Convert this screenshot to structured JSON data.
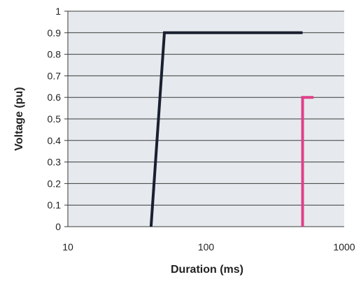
{
  "chart_data": {
    "type": "line",
    "title": "",
    "xlabel": "Duration (ms)",
    "ylabel": "Voltage (pu)",
    "x_scale": "log",
    "xlim": [
      10,
      1000
    ],
    "ylim": [
      0,
      1
    ],
    "x_ticks": [
      {
        "value": 10,
        "label": "10"
      },
      {
        "value": 100,
        "label": "100"
      },
      {
        "value": 1000,
        "label": "1000"
      }
    ],
    "y_ticks": [
      {
        "value": 0,
        "label": "0"
      },
      {
        "value": 0.1,
        "label": "0.1"
      },
      {
        "value": 0.2,
        "label": "0.2"
      },
      {
        "value": 0.3,
        "label": "0.3"
      },
      {
        "value": 0.4,
        "label": "0.4"
      },
      {
        "value": 0.5,
        "label": "0.5"
      },
      {
        "value": 0.6,
        "label": "0.6"
      },
      {
        "value": 0.7,
        "label": "0.7"
      },
      {
        "value": 0.8,
        "label": "0.8"
      },
      {
        "value": 0.9,
        "label": "0.9"
      },
      {
        "value": 1,
        "label": "1"
      }
    ],
    "grid": "horizontal",
    "legend": "none",
    "series": [
      {
        "color": "#1a2030",
        "points": [
          {
            "x": 40,
            "y": 0
          },
          {
            "x": 50,
            "y": 0.9
          },
          {
            "x": 500,
            "y": 0.9
          }
        ]
      },
      {
        "color": "#e0408a",
        "points": [
          {
            "x": 500,
            "y": 0
          },
          {
            "x": 500,
            "y": 0.6
          },
          {
            "x": 600,
            "y": 0.6
          }
        ]
      }
    ],
    "plot_background": "#e6eaee"
  }
}
